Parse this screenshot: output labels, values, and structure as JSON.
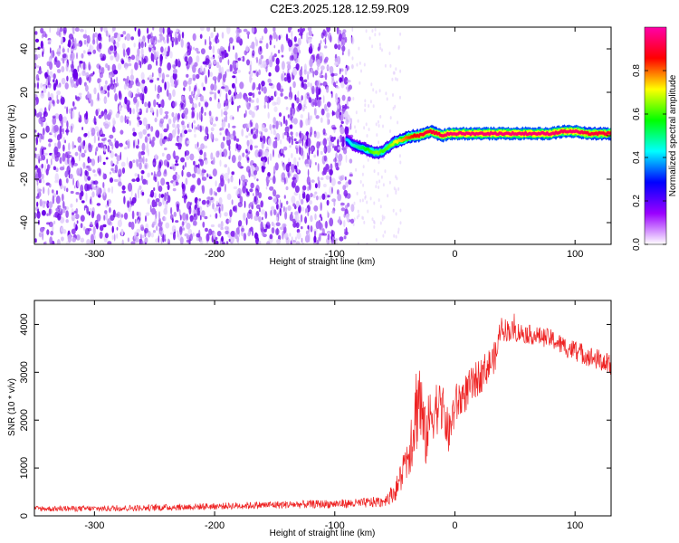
{
  "title": "C2E3.2025.128.12.59.R09",
  "colors": {
    "snr_line": "#ee2222",
    "speckle": [
      "#6a00e8",
      "#8a2ef0",
      "#a866f4",
      "#c8a2f8",
      "#e2cffc"
    ],
    "colorbar_stops": [
      "#ffffff",
      "#9a00ff",
      "#0000ff",
      "#00ffff",
      "#00ff00",
      "#ffff00",
      "#ff0000",
      "#ff00aa"
    ]
  },
  "chart_data": [
    {
      "type": "heatmap",
      "title": "C2E3.2025.128.12.59.R09",
      "xlabel": "Height of straight line (km)",
      "ylabel": "Frequency (Hz)",
      "xlim": [
        -350,
        130
      ],
      "ylim": [
        -50,
        50
      ],
      "x_ticks": [
        -300,
        -200,
        -100,
        0,
        100
      ],
      "x_tick_labels": [
        "-300",
        "-200",
        "-100",
        "0",
        "100"
      ],
      "y_ticks": [
        -40,
        -20,
        0,
        20,
        40
      ],
      "y_tick_labels": [
        "-40",
        "-20",
        "0",
        "20",
        "40"
      ],
      "noise_region_x": [
        -350,
        -85
      ],
      "signal_track": {
        "x": [
          -90,
          -85,
          -80,
          -75,
          -70,
          -65,
          -60,
          -55,
          -50,
          -45,
          -40,
          -35,
          -30,
          -25,
          -20,
          -15,
          -10,
          -5,
          0,
          20,
          40,
          60,
          80,
          90,
          100,
          110,
          120,
          130
        ],
        "y": [
          -2,
          -4,
          -5,
          -6,
          -7,
          -8,
          -7,
          -5,
          -3,
          -2,
          -1,
          0,
          0,
          1,
          2,
          1,
          0,
          1,
          1,
          1,
          1,
          1,
          1,
          2,
          2,
          1,
          1,
          1
        ],
        "amplitude": [
          0.4,
          0.45,
          0.5,
          0.55,
          0.6,
          0.65,
          0.6,
          0.62,
          0.7,
          0.75,
          0.8,
          0.85,
          0.88,
          0.9,
          0.9,
          0.9,
          0.92,
          0.95,
          0.95,
          0.95,
          0.95,
          0.95,
          0.95,
          0.92,
          0.95,
          0.9,
          0.9,
          0.9
        ]
      },
      "colorbar": {
        "label": "Normalized spectral amplitude",
        "range": [
          0,
          1
        ],
        "ticks": [
          0.0,
          0.2,
          0.4,
          0.6,
          0.8
        ],
        "tick_labels": [
          "0.0",
          "0.2",
          "0.4",
          "0.6",
          "0.8"
        ]
      }
    },
    {
      "type": "line",
      "xlabel": "Height of straight line (km)",
      "ylabel": "SNR (10 * v/v)",
      "xlim": [
        -350,
        130
      ],
      "ylim": [
        0,
        4500
      ],
      "x_ticks": [
        -300,
        -200,
        -100,
        0,
        100
      ],
      "x_tick_labels": [
        "-300",
        "-200",
        "-100",
        "0",
        "100"
      ],
      "y_ticks": [
        0,
        1000,
        2000,
        3000,
        4000
      ],
      "y_tick_labels": [
        "0",
        "1000",
        "2000",
        "3000",
        "4000"
      ],
      "series": [
        {
          "name": "SNR",
          "x": [
            -350,
            -300,
            -250,
            -200,
            -150,
            -100,
            -80,
            -60,
            -50,
            -45,
            -40,
            -35,
            -30,
            -25,
            -20,
            -15,
            -10,
            -5,
            0,
            10,
            20,
            30,
            35,
            38,
            40,
            50,
            60,
            70,
            80,
            90,
            100,
            110,
            120,
            130
          ],
          "y": [
            150,
            150,
            170,
            200,
            230,
            250,
            260,
            300,
            500,
            800,
            1200,
            1800,
            2600,
            1600,
            2100,
            2300,
            2200,
            1700,
            2300,
            2600,
            2900,
            3200,
            3400,
            4000,
            3900,
            3850,
            3800,
            3750,
            3700,
            3550,
            3450,
            3350,
            3250,
            3150
          ],
          "noise_amplitude": [
            60,
            60,
            70,
            70,
            80,
            90,
            100,
            120,
            200,
            350,
            500,
            800,
            1100,
            700,
            600,
            600,
            500,
            450,
            450,
            400,
            380,
            350,
            300,
            250,
            250,
            220,
            200,
            200,
            200,
            220,
            220,
            220,
            230,
            230
          ]
        }
      ]
    }
  ]
}
